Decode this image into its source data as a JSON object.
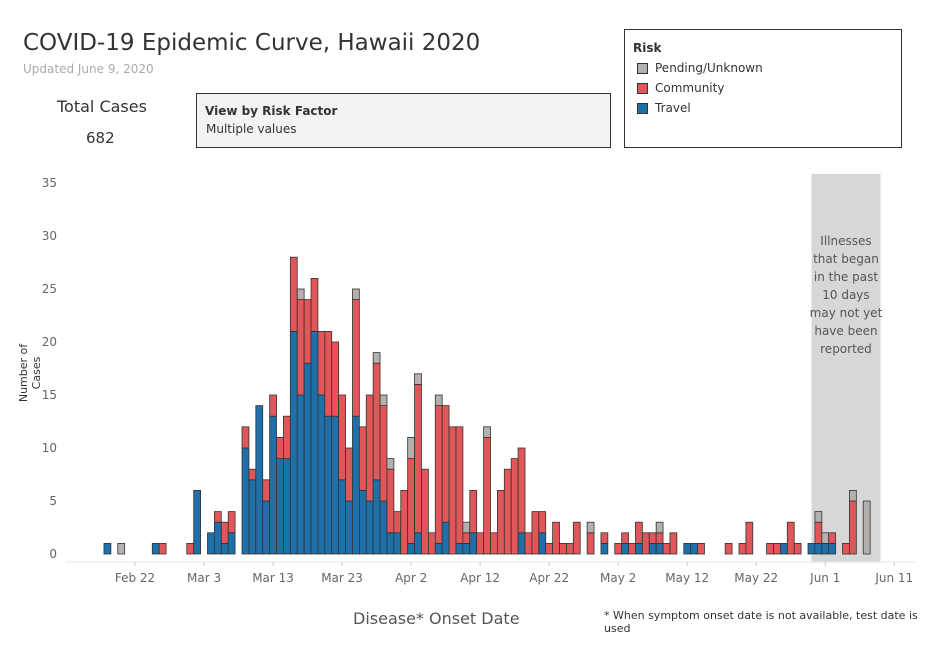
{
  "header": {
    "title": "COVID-19 Epidemic Curve, Hawaii 2020",
    "updated": "Updated June 9, 2020"
  },
  "kpi": {
    "label": "Total Cases",
    "value": "682"
  },
  "filter": {
    "title": "View by Risk Factor",
    "value": "Multiple values"
  },
  "legend": {
    "title": "Risk",
    "items": [
      {
        "label": "Pending/Unknown",
        "color": "#b5b0ad"
      },
      {
        "label": "Community",
        "color": "#e15759"
      },
      {
        "label": "Travel",
        "color": "#1f6fa8"
      }
    ]
  },
  "footnote": "* When symptom onset date is not available, test date is used",
  "chart_data": {
    "type": "bar",
    "stacked": true,
    "xlabel": "Disease* Onset Date",
    "ylabel": "Number of Cases",
    "ylim": [
      0,
      35
    ],
    "yticks": [
      0,
      5,
      10,
      15,
      20,
      25,
      30,
      35
    ],
    "x_start_date": "2020-02-12",
    "x_end_date": "2020-06-14",
    "xtick_labels": [
      {
        "label": "Feb 22",
        "date": "2020-02-22"
      },
      {
        "label": "Mar 3",
        "date": "2020-03-03"
      },
      {
        "label": "Mar 13",
        "date": "2020-03-13"
      },
      {
        "label": "Mar 23",
        "date": "2020-03-23"
      },
      {
        "label": "Apr 2",
        "date": "2020-04-02"
      },
      {
        "label": "Apr 12",
        "date": "2020-04-12"
      },
      {
        "label": "Apr 22",
        "date": "2020-04-22"
      },
      {
        "label": "May 2",
        "date": "2020-05-02"
      },
      {
        "label": "May 12",
        "date": "2020-05-12"
      },
      {
        "label": "May 22",
        "date": "2020-05-22"
      },
      {
        "label": "Jun 1",
        "date": "2020-06-01"
      },
      {
        "label": "Jun 11",
        "date": "2020-06-11"
      }
    ],
    "series_order": [
      "Travel",
      "Community",
      "Pending/Unknown"
    ],
    "shaded_region": {
      "start_date": "2020-05-30",
      "end_date": "2020-06-09",
      "text_lines": [
        "Illnesses",
        "that began",
        "in the past",
        "10 days",
        "may not yet",
        "have been",
        "reported"
      ]
    },
    "bars": [
      {
        "date": "2020-02-18",
        "Travel": 1,
        "Community": 0,
        "Pending/Unknown": 0
      },
      {
        "date": "2020-02-20",
        "Travel": 0,
        "Community": 0,
        "Pending/Unknown": 1
      },
      {
        "date": "2020-02-25",
        "Travel": 1,
        "Community": 0,
        "Pending/Unknown": 0
      },
      {
        "date": "2020-02-26",
        "Travel": 0,
        "Community": 1,
        "Pending/Unknown": 0
      },
      {
        "date": "2020-03-01",
        "Travel": 0,
        "Community": 1,
        "Pending/Unknown": 0
      },
      {
        "date": "2020-03-02",
        "Travel": 6,
        "Community": 0,
        "Pending/Unknown": 0
      },
      {
        "date": "2020-03-04",
        "Travel": 2,
        "Community": 0,
        "Pending/Unknown": 0
      },
      {
        "date": "2020-03-05",
        "Travel": 3,
        "Community": 1,
        "Pending/Unknown": 0
      },
      {
        "date": "2020-03-06",
        "Travel": 1,
        "Community": 2,
        "Pending/Unknown": 0
      },
      {
        "date": "2020-03-07",
        "Travel": 2,
        "Community": 2,
        "Pending/Unknown": 0
      },
      {
        "date": "2020-03-09",
        "Travel": 10,
        "Community": 2,
        "Pending/Unknown": 0
      },
      {
        "date": "2020-03-10",
        "Travel": 7,
        "Community": 1,
        "Pending/Unknown": 0
      },
      {
        "date": "2020-03-11",
        "Travel": 14,
        "Community": 0,
        "Pending/Unknown": 0
      },
      {
        "date": "2020-03-12",
        "Travel": 5,
        "Community": 2,
        "Pending/Unknown": 0
      },
      {
        "date": "2020-03-13",
        "Travel": 13,
        "Community": 2,
        "Pending/Unknown": 0
      },
      {
        "date": "2020-03-14",
        "Travel": 9,
        "Community": 2,
        "Pending/Unknown": 0
      },
      {
        "date": "2020-03-15",
        "Travel": 9,
        "Community": 4,
        "Pending/Unknown": 0
      },
      {
        "date": "2020-03-16",
        "Travel": 21,
        "Community": 7,
        "Pending/Unknown": 0
      },
      {
        "date": "2020-03-17",
        "Travel": 15,
        "Community": 9,
        "Pending/Unknown": 1
      },
      {
        "date": "2020-03-18",
        "Travel": 18,
        "Community": 6,
        "Pending/Unknown": 0
      },
      {
        "date": "2020-03-19",
        "Travel": 21,
        "Community": 5,
        "Pending/Unknown": 0
      },
      {
        "date": "2020-03-20",
        "Travel": 15,
        "Community": 6,
        "Pending/Unknown": 0
      },
      {
        "date": "2020-03-21",
        "Travel": 13,
        "Community": 8,
        "Pending/Unknown": 0
      },
      {
        "date": "2020-03-22",
        "Travel": 13,
        "Community": 7,
        "Pending/Unknown": 0
      },
      {
        "date": "2020-03-23",
        "Travel": 7,
        "Community": 8,
        "Pending/Unknown": 0
      },
      {
        "date": "2020-03-24",
        "Travel": 5,
        "Community": 5,
        "Pending/Unknown": 0
      },
      {
        "date": "2020-03-25",
        "Travel": 13,
        "Community": 11,
        "Pending/Unknown": 1
      },
      {
        "date": "2020-03-26",
        "Travel": 6,
        "Community": 6,
        "Pending/Unknown": 0
      },
      {
        "date": "2020-03-27",
        "Travel": 5,
        "Community": 10,
        "Pending/Unknown": 0
      },
      {
        "date": "2020-03-28",
        "Travel": 7,
        "Community": 11,
        "Pending/Unknown": 1
      },
      {
        "date": "2020-03-29",
        "Travel": 5,
        "Community": 9,
        "Pending/Unknown": 1
      },
      {
        "date": "2020-03-30",
        "Travel": 2,
        "Community": 6,
        "Pending/Unknown": 1
      },
      {
        "date": "2020-03-31",
        "Travel": 2,
        "Community": 2,
        "Pending/Unknown": 0
      },
      {
        "date": "2020-04-01",
        "Travel": 0,
        "Community": 6,
        "Pending/Unknown": 0
      },
      {
        "date": "2020-04-02",
        "Travel": 1,
        "Community": 8,
        "Pending/Unknown": 2
      },
      {
        "date": "2020-04-03",
        "Travel": 2,
        "Community": 14,
        "Pending/Unknown": 1
      },
      {
        "date": "2020-04-04",
        "Travel": 0,
        "Community": 8,
        "Pending/Unknown": 0
      },
      {
        "date": "2020-04-05",
        "Travel": 0,
        "Community": 2,
        "Pending/Unknown": 0
      },
      {
        "date": "2020-04-06",
        "Travel": 1,
        "Community": 13,
        "Pending/Unknown": 1
      },
      {
        "date": "2020-04-07",
        "Travel": 3,
        "Community": 11,
        "Pending/Unknown": 0
      },
      {
        "date": "2020-04-08",
        "Travel": 0,
        "Community": 12,
        "Pending/Unknown": 0
      },
      {
        "date": "2020-04-09",
        "Travel": 1,
        "Community": 11,
        "Pending/Unknown": 0
      },
      {
        "date": "2020-04-10",
        "Travel": 1,
        "Community": 1,
        "Pending/Unknown": 1
      },
      {
        "date": "2020-04-11",
        "Travel": 2,
        "Community": 4,
        "Pending/Unknown": 0
      },
      {
        "date": "2020-04-12",
        "Travel": 0,
        "Community": 2,
        "Pending/Unknown": 0
      },
      {
        "date": "2020-04-13",
        "Travel": 0,
        "Community": 11,
        "Pending/Unknown": 1
      },
      {
        "date": "2020-04-14",
        "Travel": 0,
        "Community": 2,
        "Pending/Unknown": 0
      },
      {
        "date": "2020-04-15",
        "Travel": 0,
        "Community": 6,
        "Pending/Unknown": 0
      },
      {
        "date": "2020-04-16",
        "Travel": 0,
        "Community": 8,
        "Pending/Unknown": 0
      },
      {
        "date": "2020-04-17",
        "Travel": 0,
        "Community": 9,
        "Pending/Unknown": 0
      },
      {
        "date": "2020-04-18",
        "Travel": 2,
        "Community": 8,
        "Pending/Unknown": 0
      },
      {
        "date": "2020-04-19",
        "Travel": 0,
        "Community": 2,
        "Pending/Unknown": 0
      },
      {
        "date": "2020-04-20",
        "Travel": 0,
        "Community": 4,
        "Pending/Unknown": 0
      },
      {
        "date": "2020-04-21",
        "Travel": 2,
        "Community": 2,
        "Pending/Unknown": 0
      },
      {
        "date": "2020-04-22",
        "Travel": 0,
        "Community": 1,
        "Pending/Unknown": 0
      },
      {
        "date": "2020-04-23",
        "Travel": 0,
        "Community": 3,
        "Pending/Unknown": 0
      },
      {
        "date": "2020-04-24",
        "Travel": 0,
        "Community": 1,
        "Pending/Unknown": 0
      },
      {
        "date": "2020-04-25",
        "Travel": 0,
        "Community": 1,
        "Pending/Unknown": 0
      },
      {
        "date": "2020-04-26",
        "Travel": 0,
        "Community": 3,
        "Pending/Unknown": 0
      },
      {
        "date": "2020-04-28",
        "Travel": 0,
        "Community": 2,
        "Pending/Unknown": 1
      },
      {
        "date": "2020-04-30",
        "Travel": 1,
        "Community": 1,
        "Pending/Unknown": 0
      },
      {
        "date": "2020-05-02",
        "Travel": 0,
        "Community": 1,
        "Pending/Unknown": 0
      },
      {
        "date": "2020-05-03",
        "Travel": 1,
        "Community": 1,
        "Pending/Unknown": 0
      },
      {
        "date": "2020-05-04",
        "Travel": 0,
        "Community": 1,
        "Pending/Unknown": 0
      },
      {
        "date": "2020-05-05",
        "Travel": 1,
        "Community": 2,
        "Pending/Unknown": 0
      },
      {
        "date": "2020-05-06",
        "Travel": 0,
        "Community": 2,
        "Pending/Unknown": 0
      },
      {
        "date": "2020-05-07",
        "Travel": 1,
        "Community": 1,
        "Pending/Unknown": 0
      },
      {
        "date": "2020-05-08",
        "Travel": 1,
        "Community": 1,
        "Pending/Unknown": 1
      },
      {
        "date": "2020-05-09",
        "Travel": 0,
        "Community": 1,
        "Pending/Unknown": 0
      },
      {
        "date": "2020-05-10",
        "Travel": 0,
        "Community": 2,
        "Pending/Unknown": 0
      },
      {
        "date": "2020-05-12",
        "Travel": 1,
        "Community": 0,
        "Pending/Unknown": 0
      },
      {
        "date": "2020-05-13",
        "Travel": 1,
        "Community": 0,
        "Pending/Unknown": 0
      },
      {
        "date": "2020-05-14",
        "Travel": 0,
        "Community": 1,
        "Pending/Unknown": 0
      },
      {
        "date": "2020-05-18",
        "Travel": 0,
        "Community": 1,
        "Pending/Unknown": 0
      },
      {
        "date": "2020-05-20",
        "Travel": 0,
        "Community": 1,
        "Pending/Unknown": 0
      },
      {
        "date": "2020-05-21",
        "Travel": 0,
        "Community": 3,
        "Pending/Unknown": 0
      },
      {
        "date": "2020-05-24",
        "Travel": 0,
        "Community": 1,
        "Pending/Unknown": 0
      },
      {
        "date": "2020-05-25",
        "Travel": 0,
        "Community": 1,
        "Pending/Unknown": 0
      },
      {
        "date": "2020-05-26",
        "Travel": 1,
        "Community": 0,
        "Pending/Unknown": 0
      },
      {
        "date": "2020-05-27",
        "Travel": 0,
        "Community": 3,
        "Pending/Unknown": 0
      },
      {
        "date": "2020-05-28",
        "Travel": 0,
        "Community": 1,
        "Pending/Unknown": 0
      },
      {
        "date": "2020-05-30",
        "Travel": 1,
        "Community": 0,
        "Pending/Unknown": 0
      },
      {
        "date": "2020-05-31",
        "Travel": 1,
        "Community": 2,
        "Pending/Unknown": 1
      },
      {
        "date": "2020-06-01",
        "Travel": 1,
        "Community": 0,
        "Pending/Unknown": 1
      },
      {
        "date": "2020-06-02",
        "Travel": 1,
        "Community": 1,
        "Pending/Unknown": 0
      },
      {
        "date": "2020-06-04",
        "Travel": 0,
        "Community": 1,
        "Pending/Unknown": 0
      },
      {
        "date": "2020-06-05",
        "Travel": 0,
        "Community": 5,
        "Pending/Unknown": 1
      },
      {
        "date": "2020-06-07",
        "Travel": 0,
        "Community": 0,
        "Pending/Unknown": 5
      }
    ]
  }
}
